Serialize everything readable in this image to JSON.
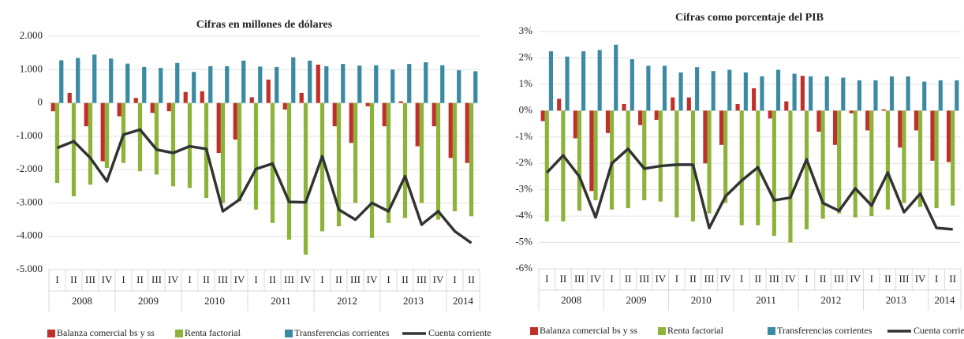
{
  "chart_data": [
    {
      "type": "bar",
      "title": "Cifras en millones de dólares",
      "categories": [
        "I",
        "II",
        "III",
        "IV",
        "I",
        "II",
        "III",
        "IV",
        "I",
        "II",
        "III",
        "IV",
        "I",
        "II",
        "III",
        "IV",
        "I",
        "II",
        "III",
        "IV",
        "I",
        "II",
        "III",
        "IV",
        "I",
        "II"
      ],
      "year_groups": [
        "2008",
        "2009",
        "2010",
        "2011",
        "2012",
        "2013",
        "2014"
      ],
      "ylim": [
        -5000,
        2000
      ],
      "yticks": [
        {
          "value": 2000,
          "label": "2.000"
        },
        {
          "value": 1000,
          "label": "1.000"
        },
        0,
        {
          "value": -1000,
          "label": "-1.000"
        },
        {
          "value": -2000,
          "label": "-2.000"
        },
        {
          "value": -3000,
          "label": "-3.000"
        },
        {
          "value": -4000,
          "label": "-4.000"
        },
        {
          "value": -5000,
          "label": "-5.000"
        }
      ],
      "grid": true,
      "legend": "bottom",
      "series": [
        {
          "name": "Balanza comercial bs y ss",
          "type": "bar",
          "color": "#c0302b",
          "values": [
            -250,
            300,
            -700,
            -1750,
            -400,
            150,
            -300,
            -250,
            330,
            350,
            -1500,
            -1100,
            170,
            700,
            -200,
            300,
            1150,
            -700,
            -1200,
            -100,
            -700,
            50,
            -1300,
            -700,
            -1650,
            -1800
          ]
        },
        {
          "name": "Renta factorial",
          "type": "bar",
          "color": "#8db33a",
          "values": [
            -2400,
            -2800,
            -2450,
            -1950,
            -1800,
            -2050,
            -2150,
            -2500,
            -2550,
            -2850,
            -3000,
            -2950,
            -3200,
            -3600,
            -4100,
            -4550,
            -3850,
            -3700,
            -3000,
            -4050,
            -3600,
            -3450,
            -3000,
            -3500,
            -3250,
            -3400
          ]
        },
        {
          "name": "Transferencias corrientes",
          "type": "bar",
          "color": "#3a8aa3",
          "values": [
            1280,
            1350,
            1450,
            1330,
            1180,
            1080,
            1050,
            1200,
            930,
            1100,
            1100,
            1270,
            1090,
            1080,
            1370,
            1270,
            1100,
            1170,
            1120,
            1130,
            1000,
            1170,
            1220,
            1130,
            980,
            950
          ]
        },
        {
          "name": "Cuenta corriente",
          "type": "line",
          "color": "#333333",
          "values": [
            -1350,
            -1150,
            -1650,
            -2350,
            -950,
            -800,
            -1400,
            -1500,
            -1300,
            -1380,
            -3250,
            -2900,
            -1980,
            -1820,
            -2970,
            -2980,
            -1600,
            -3200,
            -3500,
            -3000,
            -3250,
            -2200,
            -3650,
            -3250,
            -3850,
            -4200
          ]
        }
      ]
    },
    {
      "type": "bar",
      "title": "Cifras como porcentaje del PIB",
      "categories": [
        "I",
        "II",
        "III",
        "IV",
        "I",
        "II",
        "III",
        "IV",
        "I",
        "II",
        "III",
        "IV",
        "I",
        "II",
        "III",
        "IV",
        "I",
        "II",
        "III",
        "IV",
        "I",
        "II",
        "III",
        "IV",
        "I",
        "II"
      ],
      "year_groups": [
        "2008",
        "2009",
        "2010",
        "2011",
        "2012",
        "2013",
        "2014"
      ],
      "ylim": [
        -6,
        3
      ],
      "yticks": [
        {
          "value": 3,
          "label": "3%"
        },
        {
          "value": 2,
          "label": "2%"
        },
        {
          "value": 1,
          "label": "1%"
        },
        {
          "value": 0,
          "label": "0%"
        },
        {
          "value": -1,
          "label": "-1%"
        },
        {
          "value": -2,
          "label": "-2%"
        },
        {
          "value": -3,
          "label": "-3%"
        },
        {
          "value": -4,
          "label": "-4%"
        },
        {
          "value": -5,
          "label": "-5%"
        },
        {
          "value": -6,
          "label": "-6%"
        }
      ],
      "grid": true,
      "legend": "bottom",
      "series": [
        {
          "name": "Balanza comercial bs y ss",
          "type": "bar",
          "color": "#c0302b",
          "values": [
            -0.4,
            0.45,
            -1.05,
            -3.05,
            -0.85,
            0.25,
            -0.55,
            -0.35,
            0.5,
            0.5,
            -2.0,
            -1.3,
            0.25,
            0.85,
            -0.3,
            0.35,
            1.32,
            -0.8,
            -1.3,
            -0.1,
            -0.75,
            0.05,
            -1.4,
            -0.75,
            -1.9,
            -1.95
          ]
        },
        {
          "name": "Renta factorial",
          "type": "bar",
          "color": "#8db33a",
          "values": [
            -4.2,
            -4.2,
            -3.8,
            -3.4,
            -3.75,
            -3.7,
            -3.4,
            -3.45,
            -4.05,
            -4.2,
            -3.9,
            -3.5,
            -4.35,
            -4.35,
            -4.75,
            -5.0,
            -4.5,
            -4.1,
            -3.9,
            -4.05,
            -4.0,
            -3.75,
            -3.5,
            -3.65,
            -3.7,
            -3.6
          ]
        },
        {
          "name": "Transferencias corrientes",
          "type": "bar",
          "color": "#3a8aa3",
          "values": [
            2.25,
            2.05,
            2.25,
            2.3,
            2.5,
            1.95,
            1.7,
            1.7,
            1.45,
            1.65,
            1.5,
            1.55,
            1.45,
            1.3,
            1.55,
            1.4,
            1.3,
            1.3,
            1.25,
            1.15,
            1.15,
            1.3,
            1.3,
            1.1,
            1.15,
            1.15
          ]
        },
        {
          "name": "Cuenta corriente",
          "type": "line",
          "color": "#333333",
          "values": [
            -2.35,
            -1.7,
            -2.5,
            -4.05,
            -2.0,
            -1.45,
            -2.2,
            -2.1,
            -2.05,
            -2.05,
            -4.45,
            -3.25,
            -2.65,
            -2.15,
            -3.4,
            -3.3,
            -1.85,
            -3.5,
            -3.8,
            -2.95,
            -3.6,
            -2.35,
            -3.85,
            -3.15,
            -4.45,
            -4.5
          ]
        }
      ]
    }
  ]
}
